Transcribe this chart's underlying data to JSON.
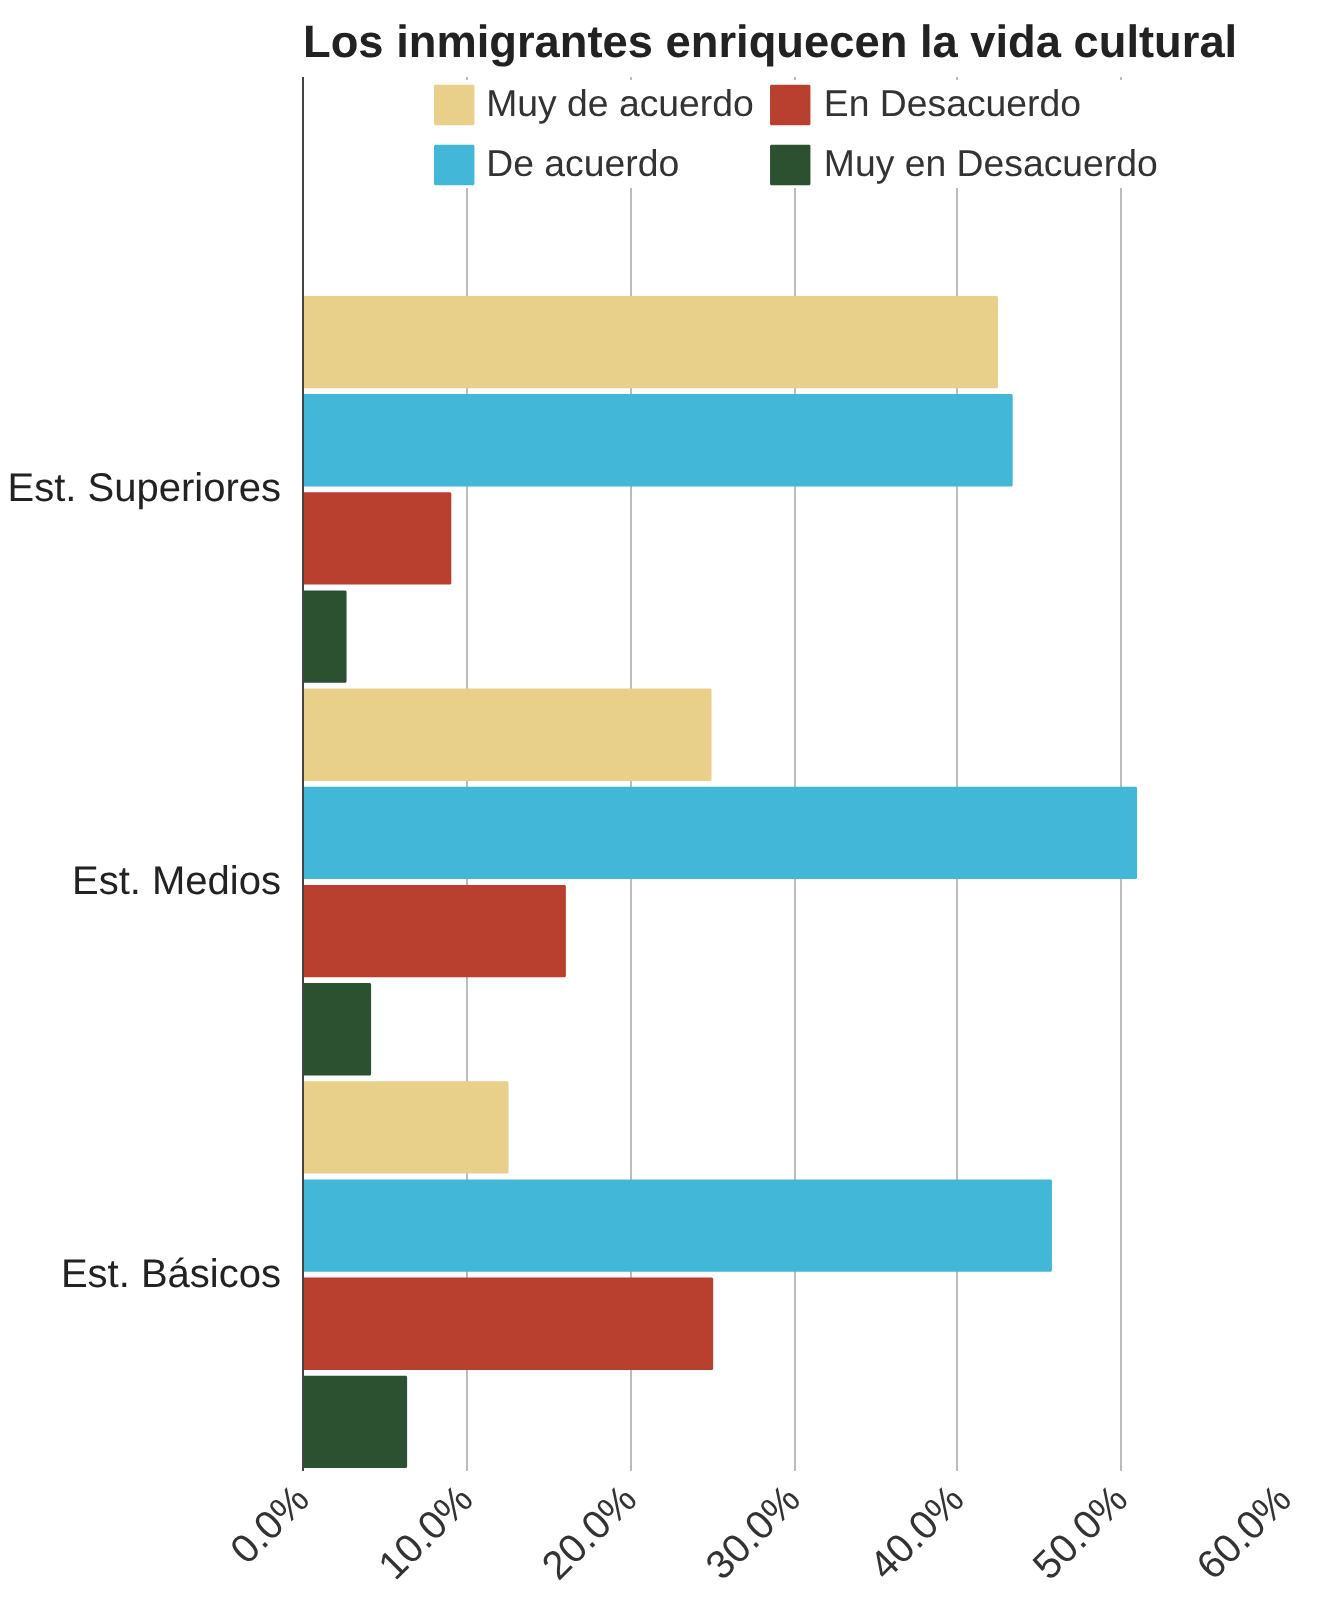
{
  "chart_data": {
    "type": "bar",
    "orientation": "horizontal",
    "title": "Los inmigrantes enriquecen la vida cultural",
    "categories": [
      "Est. Superiores",
      "Est. Medios",
      "Est. Básicos"
    ],
    "series": [
      {
        "name": "Muy de acuerdo",
        "color": "#e8d08b",
        "values": [
          42.4,
          24.9,
          12.5
        ]
      },
      {
        "name": "De acuerdo",
        "color": "#42b7d7",
        "values": [
          43.3,
          50.9,
          45.7
        ]
      },
      {
        "name": "En Desacuerdo",
        "color": "#b93f2f",
        "values": [
          9.0,
          16.0,
          25.0
        ]
      },
      {
        "name": "Muy en Desacuerdo",
        "color": "#2b5131",
        "values": [
          2.6,
          4.1,
          6.3
        ]
      }
    ],
    "xlim": [
      0,
      60
    ],
    "xticks": [
      {
        "value": 0,
        "label": "0.0%"
      },
      {
        "value": 10,
        "label": "10.0%"
      },
      {
        "value": 20,
        "label": "20.0%"
      },
      {
        "value": 30,
        "label": "30.0%"
      },
      {
        "value": 40,
        "label": "40.0%"
      },
      {
        "value": 50,
        "label": "50.0%"
      },
      {
        "value": 60,
        "label": "60.0%"
      }
    ],
    "grid": "x",
    "legend": "top"
  }
}
